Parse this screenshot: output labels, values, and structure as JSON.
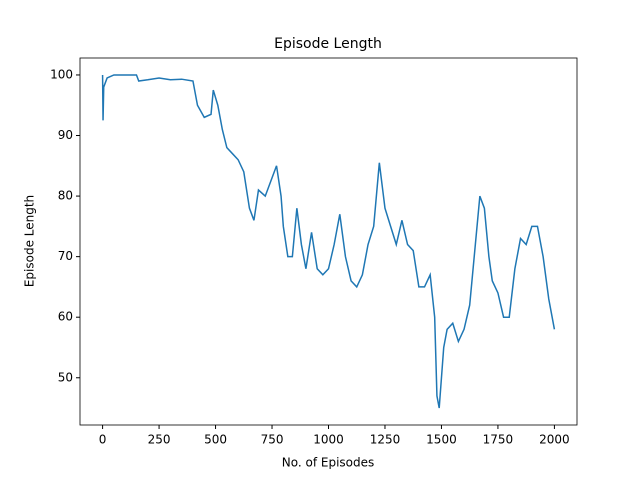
{
  "chart_data": {
    "type": "line",
    "title": "Episode Length",
    "x_label": "No. of Episodes",
    "y_label": "Episode Length",
    "x": [
      0,
      2,
      5,
      20,
      50,
      150,
      160,
      200,
      250,
      300,
      350,
      400,
      420,
      450,
      480,
      490,
      510,
      530,
      550,
      575,
      600,
      625,
      650,
      670,
      690,
      720,
      750,
      770,
      790,
      800,
      820,
      840,
      860,
      880,
      900,
      925,
      950,
      975,
      1000,
      1025,
      1050,
      1075,
      1100,
      1125,
      1150,
      1175,
      1200,
      1225,
      1250,
      1275,
      1300,
      1325,
      1350,
      1375,
      1400,
      1425,
      1450,
      1470,
      1480,
      1490,
      1500,
      1510,
      1525,
      1550,
      1575,
      1600,
      1625,
      1650,
      1670,
      1690,
      1710,
      1725,
      1750,
      1775,
      1800,
      1825,
      1850,
      1875,
      1900,
      1925,
      1950,
      1975,
      2000
    ],
    "series": [
      {
        "name": "Episode Length",
        "color": "#1f77b4",
        "values": [
          100,
          92.5,
          98,
          99.5,
          100,
          100,
          99,
          99.2,
          99.5,
          99.2,
          99.3,
          99,
          95,
          93,
          93.5,
          97.5,
          95,
          91,
          88,
          87,
          86,
          84,
          78,
          76,
          81,
          80,
          83,
          85,
          80,
          75,
          70,
          70,
          78,
          72,
          68,
          74,
          68,
          67,
          68,
          72,
          77,
          70,
          66,
          65,
          67,
          72,
          75,
          85.5,
          78,
          75,
          72,
          76,
          72,
          71,
          65,
          65,
          67,
          60,
          47,
          45,
          50,
          55,
          58,
          59,
          56,
          58,
          62,
          72,
          80,
          78,
          70,
          66,
          64,
          60,
          60,
          68,
          73,
          72,
          75,
          75,
          70,
          63,
          58
        ]
      }
    ],
    "xlim": [
      -100,
      2100
    ],
    "ylim": [
      42.2,
      102.8
    ],
    "xticks": [
      0,
      250,
      500,
      750,
      1000,
      1250,
      1500,
      1750,
      2000
    ],
    "yticks": [
      50,
      60,
      70,
      80,
      90,
      100
    ]
  }
}
